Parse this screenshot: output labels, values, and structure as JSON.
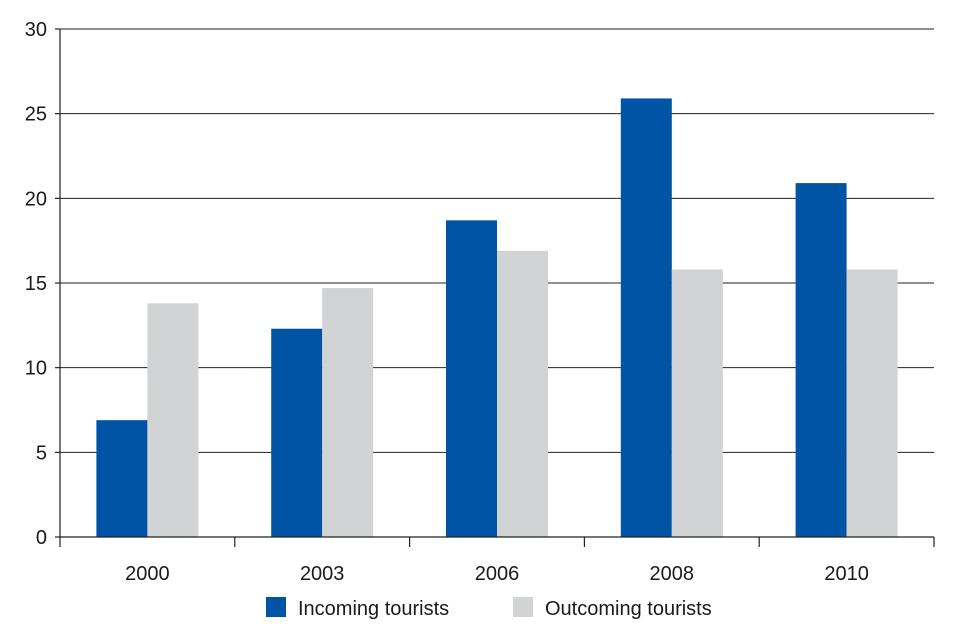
{
  "chart_data": {
    "type": "bar",
    "title": "",
    "xlabel": "",
    "ylabel": "",
    "categories": [
      "2000",
      "2003",
      "2006",
      "2008",
      "2010"
    ],
    "series": [
      {
        "name": "Incoming tourists",
        "color": "#0054a6",
        "values": [
          6.9,
          12.3,
          18.7,
          25.9,
          20.9
        ]
      },
      {
        "name": "Outcoming tourists",
        "color": "#d1d3d4",
        "values": [
          13.8,
          14.7,
          16.9,
          15.8,
          15.8
        ]
      }
    ],
    "ylim": [
      0,
      30
    ],
    "yticks": [
      0,
      5,
      10,
      15,
      20,
      25,
      30
    ],
    "grid": true,
    "legend_position": "bottom"
  }
}
